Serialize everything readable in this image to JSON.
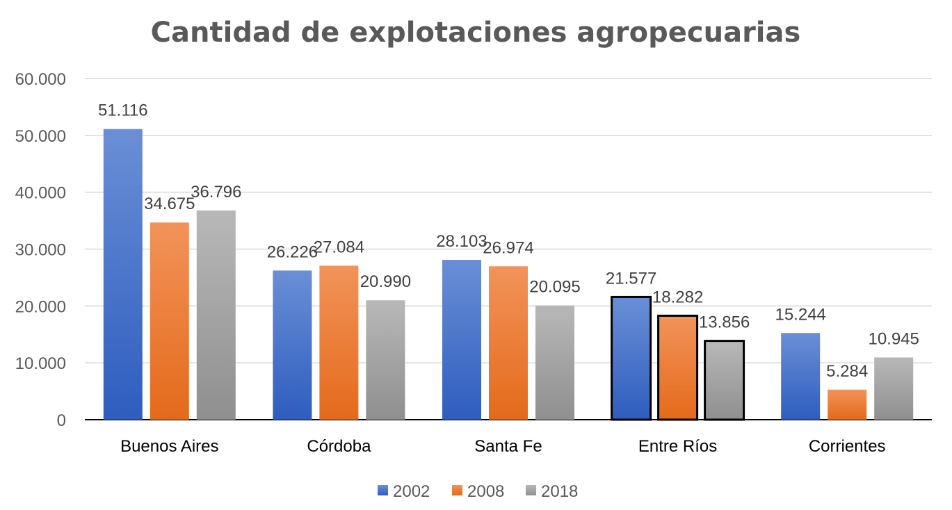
{
  "chart_data": {
    "type": "bar",
    "title": "Cantidad de explotaciones agropecuarias",
    "xlabel": "",
    "ylabel": "",
    "ylim": [
      0,
      60000
    ],
    "yticks": [
      0,
      10000,
      20000,
      30000,
      40000,
      50000,
      60000
    ],
    "ytick_labels": [
      "0",
      "10.000",
      "20.000",
      "30.000",
      "40.000",
      "50.000",
      "60.000"
    ],
    "grid": true,
    "legend_position": "bottom",
    "categories": [
      "Buenos Aires",
      "Córdoba",
      "Santa Fe",
      "Entre Ríos",
      "Corrientes"
    ],
    "highlighted_category": "Entre Ríos",
    "series": [
      {
        "name": "2002",
        "color": "#4472C4",
        "values": [
          51116,
          26226,
          28103,
          21577,
          15244
        ],
        "labels": [
          "51.116",
          "26.226",
          "28.103",
          "21.577",
          "15.244"
        ]
      },
      {
        "name": "2008",
        "color": "#ED7D31",
        "values": [
          34675,
          27084,
          26974,
          18282,
          5284
        ],
        "labels": [
          "34.675",
          "27.084",
          "26.974",
          "18.282",
          "5.284"
        ]
      },
      {
        "name": "2018",
        "color": "#A5A5A5",
        "values": [
          36796,
          20990,
          20095,
          13856,
          10945
        ],
        "labels": [
          "36.796",
          "20.990",
          "20.095",
          "13.856",
          "10.945"
        ]
      }
    ]
  }
}
